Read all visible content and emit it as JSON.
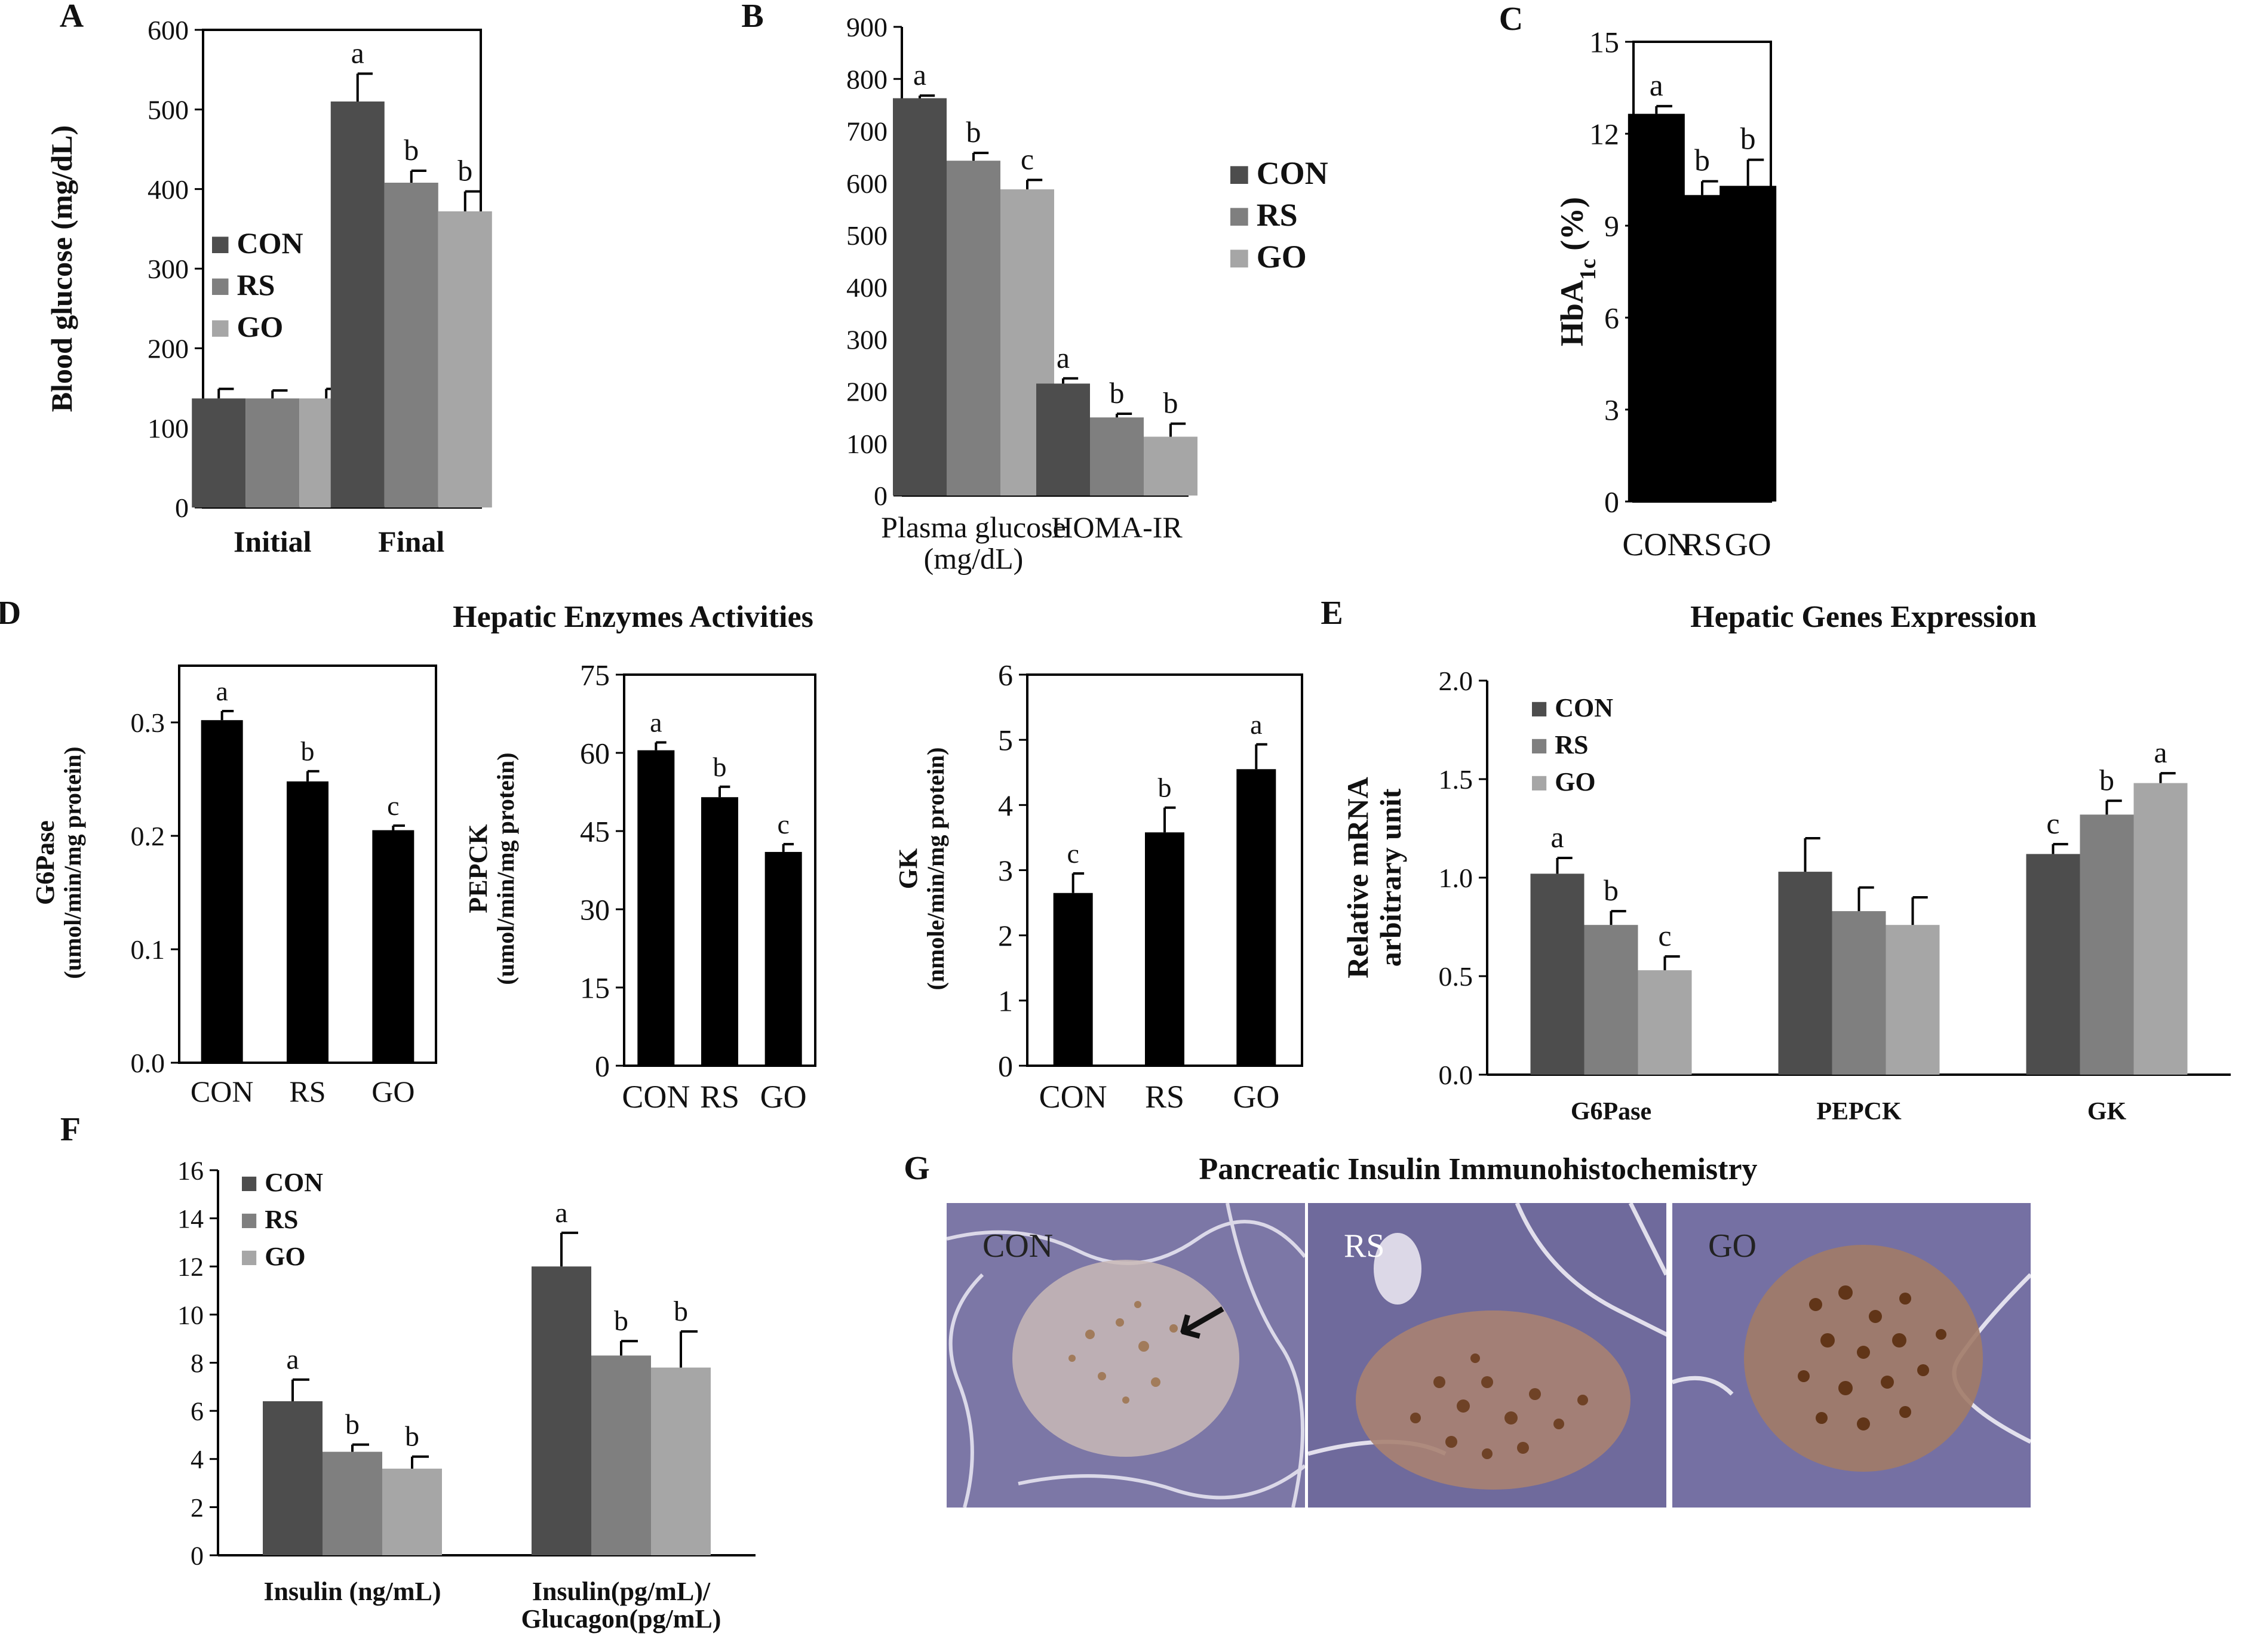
{
  "chart_data": [
    {
      "id": "A",
      "type": "bar",
      "panel_label": "A",
      "title": "",
      "categories": [
        "Initial",
        "Final"
      ],
      "series": [
        {
          "name": "CON",
          "color": "#4d4d4d",
          "values": [
            137,
            510
          ],
          "errors": [
            12,
            35
          ],
          "labels": [
            "",
            "a"
          ]
        },
        {
          "name": "RS",
          "color": "#7f7f7f",
          "values": [
            137,
            408
          ],
          "errors": [
            10,
            15
          ],
          "labels": [
            "",
            "b"
          ]
        },
        {
          "name": "GO",
          "color": "#a6a6a6",
          "values": [
            137,
            372
          ],
          "errors": [
            12,
            25
          ],
          "labels": [
            "",
            "b"
          ]
        }
      ],
      "xlabel": "",
      "ylabel": "Blood glucose (mg/dL)",
      "ylim": [
        0,
        600
      ],
      "yticks": [
        0,
        100,
        200,
        300,
        400,
        500,
        600
      ],
      "legend": "middle-left",
      "grid": false
    },
    {
      "id": "B",
      "type": "bar",
      "panel_label": "B",
      "title": "",
      "categories": [
        "Plasma glucose (mg/dL)",
        "HOMA-IR"
      ],
      "series": [
        {
          "name": "CON",
          "color": "#4d4d4d",
          "values": [
            763,
            215
          ],
          "errors": [
            5,
            10
          ],
          "labels": [
            "a",
            "a"
          ]
        },
        {
          "name": "RS",
          "color": "#7f7f7f",
          "values": [
            643,
            150
          ],
          "errors": [
            15,
            7
          ],
          "labels": [
            "b",
            "b"
          ]
        },
        {
          "name": "GO",
          "color": "#a6a6a6",
          "values": [
            588,
            113
          ],
          "errors": [
            18,
            25
          ],
          "labels": [
            "c",
            "b"
          ]
        }
      ],
      "xlabel": "",
      "ylabel": "",
      "ylim": [
        0,
        900
      ],
      "yticks": [
        0,
        100,
        200,
        300,
        400,
        500,
        600,
        700,
        800,
        900
      ],
      "legend": "middle-right",
      "grid": false
    },
    {
      "id": "C",
      "type": "bar",
      "panel_label": "C",
      "title": "",
      "categories": [
        "CON",
        "RS",
        "GO"
      ],
      "series": [
        {
          "name": "HbA1c",
          "color": "#000000",
          "values": [
            12.65,
            10.0,
            10.3
          ],
          "errors": [
            0.25,
            0.45,
            0.85
          ],
          "labels": [
            "a",
            "b",
            "b"
          ]
        }
      ],
      "xlabel": "",
      "ylabel": "HbA1c (%)",
      "ylim": [
        0,
        15
      ],
      "yticks": [
        0,
        3,
        6,
        9,
        12,
        15
      ],
      "legend": "none",
      "grid": false
    },
    {
      "id": "D1",
      "type": "bar",
      "panel_label": "D",
      "title": "Hepatic Enzymes Activities",
      "categories": [
        "CON",
        "RS",
        "GO"
      ],
      "series": [
        {
          "name": "G6Pase",
          "color": "#000000",
          "values": [
            0.302,
            0.248,
            0.205
          ],
          "errors": [
            0.008,
            0.009,
            0.004
          ],
          "labels": [
            "a",
            "b",
            "c"
          ]
        }
      ],
      "xlabel": "",
      "ylabel": "G6Pase",
      "ylabel2": "(umol/min/mg protein)",
      "ylim": [
        0,
        0.35
      ],
      "yticks": [
        0.0,
        0.1,
        0.2,
        0.3
      ],
      "ytick_labels": [
        "0.0",
        "0.1",
        "0.2",
        "0.3"
      ],
      "legend": "none",
      "grid": false
    },
    {
      "id": "D2",
      "type": "bar",
      "title": "",
      "categories": [
        "CON",
        "RS",
        "GO"
      ],
      "series": [
        {
          "name": "PEPCK",
          "color": "#000000",
          "values": [
            60.5,
            51.5,
            41.0
          ],
          "errors": [
            1.5,
            2.0,
            1.5
          ],
          "labels": [
            "a",
            "b",
            "c"
          ]
        }
      ],
      "xlabel": "",
      "ylabel": "PEPCK",
      "ylabel2": "(umol/min/mg protein)",
      "ylim": [
        0,
        75
      ],
      "yticks": [
        0,
        15,
        30,
        45,
        60,
        75
      ],
      "legend": "none",
      "grid": false
    },
    {
      "id": "D3",
      "type": "bar",
      "title": "",
      "categories": [
        "CON",
        "RS",
        "GO"
      ],
      "series": [
        {
          "name": "GK",
          "color": "#000000",
          "values": [
            2.65,
            3.58,
            4.55
          ],
          "errors": [
            0.3,
            0.38,
            0.38
          ],
          "labels": [
            "c",
            "b",
            "a"
          ]
        }
      ],
      "xlabel": "",
      "ylabel": "GK",
      "ylabel2": "(nmole/min/mg protein)",
      "ylim": [
        0,
        6
      ],
      "yticks": [
        0,
        1,
        2,
        3,
        4,
        5,
        6
      ],
      "legend": "none",
      "grid": false
    },
    {
      "id": "E",
      "type": "bar",
      "panel_label": "E",
      "title": "Hepatic Genes Expression",
      "categories": [
        "G6Pase",
        "PEPCK",
        "GK"
      ],
      "series": [
        {
          "name": "CON",
          "color": "#4d4d4d",
          "values": [
            1.02,
            1.03,
            1.12
          ],
          "errors": [
            0.08,
            0.17,
            0.05
          ],
          "labels": [
            "a",
            "",
            "c"
          ]
        },
        {
          "name": "RS",
          "color": "#7f7f7f",
          "values": [
            0.76,
            0.83,
            1.32
          ],
          "errors": [
            0.07,
            0.12,
            0.07
          ],
          "labels": [
            "b",
            "",
            "b"
          ]
        },
        {
          "name": "GO",
          "color": "#a6a6a6",
          "values": [
            0.53,
            0.76,
            1.48
          ],
          "errors": [
            0.07,
            0.14,
            0.05
          ],
          "labels": [
            "c",
            "",
            "a"
          ]
        }
      ],
      "xlabel": "",
      "ylabel": "Relative mRNA",
      "ylabel2": "arbitrary unit",
      "ylim": [
        0,
        2
      ],
      "yticks": [
        0,
        0.5,
        1,
        1.5,
        2
      ],
      "ytick_labels": [
        "0.0",
        "0.5",
        "1.0",
        "1.5",
        "2.0"
      ],
      "legend": "top-left",
      "grid": false
    },
    {
      "id": "F",
      "type": "bar",
      "panel_label": "F",
      "title": "",
      "categories": [
        "Insulin (ng/mL)",
        "Insulin(pg/mL)/ Glucagon(pg/mL)"
      ],
      "series": [
        {
          "name": "CON",
          "color": "#4d4d4d",
          "values": [
            6.4,
            12.0
          ],
          "errors": [
            0.9,
            1.4
          ],
          "labels": [
            "a",
            "a"
          ]
        },
        {
          "name": "RS",
          "color": "#7f7f7f",
          "values": [
            4.3,
            8.3
          ],
          "errors": [
            0.3,
            0.6
          ],
          "labels": [
            "b",
            "b"
          ]
        },
        {
          "name": "GO",
          "color": "#a6a6a6",
          "values": [
            3.6,
            7.8
          ],
          "errors": [
            0.5,
            1.5
          ],
          "labels": [
            "b",
            "b"
          ]
        }
      ],
      "xlabel": "",
      "ylabel": "",
      "ylim": [
        0,
        16
      ],
      "yticks": [
        0,
        2,
        4,
        6,
        8,
        10,
        12,
        14,
        16
      ],
      "legend": "top-left",
      "grid": false
    }
  ],
  "panel_g": {
    "label": "G",
    "title": "Pancreatic Insulin Immunohistochemistry",
    "images": [
      {
        "name": "CON",
        "label": "CON",
        "stain": "light"
      },
      {
        "name": "RS",
        "label": "RS",
        "stain": "medium"
      },
      {
        "name": "GO",
        "label": "GO",
        "stain": "strong"
      }
    ]
  }
}
